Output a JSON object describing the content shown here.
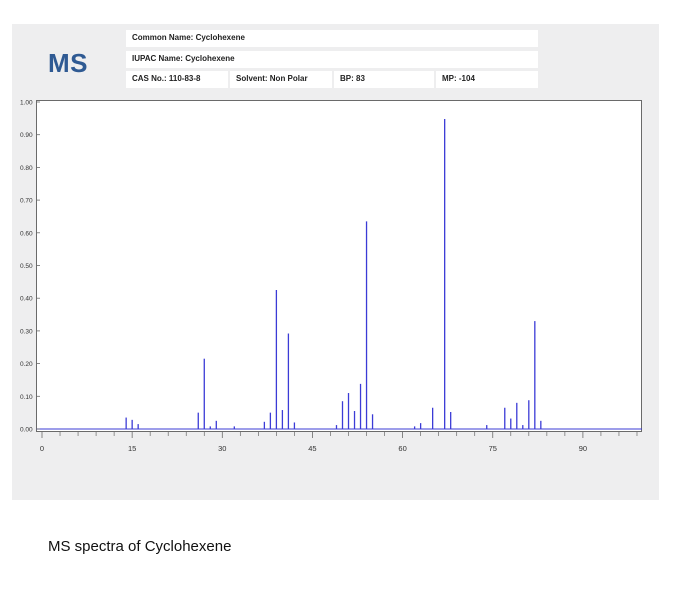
{
  "header": {
    "logo": "MS",
    "common_name": "Common Name: Cyclohexene",
    "iupac_name": "IUPAC Name: Cyclohexene",
    "cas_no": "CAS No.: 110-83-8",
    "solvent": "Solvent: Non Polar",
    "bp": "BP: 83",
    "mp": "MP: -104"
  },
  "caption": "MS spectra of Cyclohexene",
  "colors": {
    "peaks": "#3b3bd6",
    "logo": "#2f5a93",
    "axis": "#6a6a6a"
  },
  "chart_data": {
    "type": "bar",
    "title": "",
    "xlabel": "",
    "ylabel": "",
    "xlim": [
      0,
      100
    ],
    "ylim": [
      0,
      1.0
    ],
    "x_ticks": [
      0,
      15,
      30,
      45,
      60,
      75,
      90
    ],
    "x_tick_labels": [
      "0",
      "15",
      "30",
      "45",
      "60",
      "75",
      "90"
    ],
    "y_ticks": [
      0,
      0.1,
      0.2,
      0.3,
      0.4,
      0.5,
      0.6,
      0.7,
      0.8,
      0.9,
      1.0
    ],
    "y_tick_labels": [
      "0.00",
      "0.10",
      "0.20",
      "0.30",
      "0.40",
      "0.50",
      "0.60",
      "0.70",
      "0.80",
      "0.90",
      "1.00"
    ],
    "grid": false,
    "x": [
      14,
      15,
      16,
      26,
      27,
      28,
      29,
      32,
      37,
      38,
      39,
      40,
      41,
      42,
      49,
      50,
      51,
      52,
      53,
      54,
      55,
      62,
      63,
      65,
      67,
      68,
      74,
      77,
      78,
      79,
      80,
      81,
      82,
      83
    ],
    "values": [
      0.035,
      0.028,
      0.015,
      0.05,
      0.215,
      0.008,
      0.025,
      0.008,
      0.022,
      0.05,
      0.425,
      0.058,
      0.292,
      0.02,
      0.012,
      0.085,
      0.11,
      0.055,
      0.138,
      0.635,
      0.045,
      0.008,
      0.018,
      0.065,
      0.948,
      0.052,
      0.012,
      0.065,
      0.032,
      0.08,
      0.012,
      0.088,
      0.33,
      0.025
    ]
  }
}
